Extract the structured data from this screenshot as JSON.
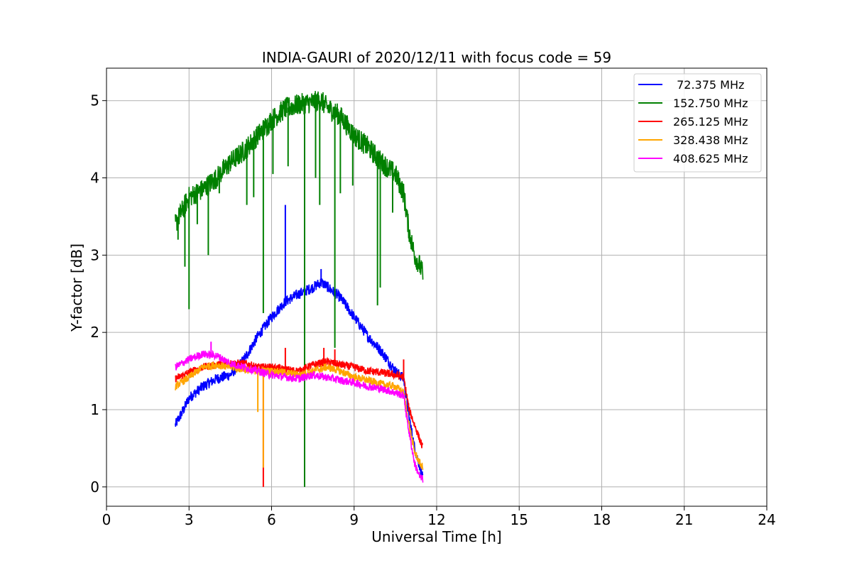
{
  "chart_data": {
    "type": "line",
    "title": "INDIA-GAURI of 2020/12/11 with focus code = 59",
    "xlabel": "Universal Time [h]",
    "ylabel": "Y-factor [dB]",
    "xlim": [
      0,
      24
    ],
    "ylim": [
      -0.25,
      5.42
    ],
    "xticks": [
      0,
      3,
      6,
      9,
      12,
      15,
      18,
      21,
      24
    ],
    "yticks": [
      0,
      1,
      2,
      3,
      4,
      5
    ],
    "grid": true,
    "legend_position": "top-right",
    "series": [
      {
        "name": "72.375 MHz",
        "legend_label": " 72.375 MHz",
        "color": "#0000ff",
        "noise": 0.07,
        "x": [
          2.5,
          2.8,
          3.0,
          3.5,
          4.0,
          4.5,
          5.0,
          5.5,
          6.0,
          6.5,
          7.0,
          7.5,
          7.8,
          8.0,
          8.5,
          9.0,
          9.5,
          10.0,
          10.5,
          10.8,
          11.0,
          11.2,
          11.4,
          11.5
        ],
        "values": [
          0.8,
          1.0,
          1.15,
          1.3,
          1.4,
          1.45,
          1.65,
          1.95,
          2.2,
          2.4,
          2.5,
          2.58,
          2.65,
          2.6,
          2.45,
          2.2,
          1.95,
          1.75,
          1.5,
          1.4,
          0.9,
          0.5,
          0.25,
          0.1
        ],
        "spikes": [
          {
            "x": 6.5,
            "y": 3.65
          },
          {
            "x": 7.8,
            "y": 2.82
          }
        ]
      },
      {
        "name": "152.750 MHz",
        "legend_label": "152.750 MHz",
        "color": "#008000",
        "noise": 0.14,
        "x": [
          2.5,
          3.0,
          3.5,
          4.0,
          4.5,
          5.0,
          5.5,
          6.0,
          6.5,
          7.0,
          7.5,
          7.8,
          8.0,
          8.5,
          9.0,
          9.5,
          10.0,
          10.5,
          10.8,
          11.0,
          11.2,
          11.4,
          11.5
        ],
        "values": [
          3.4,
          3.75,
          3.85,
          4.0,
          4.2,
          4.35,
          4.55,
          4.75,
          4.9,
          4.95,
          4.98,
          5.0,
          4.92,
          4.8,
          4.55,
          4.4,
          4.2,
          4.05,
          3.8,
          3.3,
          3.0,
          2.85,
          2.75
        ],
        "spikes": [
          {
            "x": 2.6,
            "y": 3.2
          },
          {
            "x": 2.85,
            "y": 2.85
          },
          {
            "x": 3.0,
            "y": 2.3
          },
          {
            "x": 3.3,
            "y": 3.4
          },
          {
            "x": 3.7,
            "y": 3.0
          },
          {
            "x": 4.1,
            "y": 3.8
          },
          {
            "x": 5.1,
            "y": 3.65
          },
          {
            "x": 5.35,
            "y": 3.75
          },
          {
            "x": 5.7,
            "y": 2.25
          },
          {
            "x": 6.05,
            "y": 4.05
          },
          {
            "x": 6.6,
            "y": 4.15
          },
          {
            "x": 7.2,
            "y": 0.0
          },
          {
            "x": 7.6,
            "y": 4.0
          },
          {
            "x": 7.75,
            "y": 3.65
          },
          {
            "x": 8.3,
            "y": 1.8
          },
          {
            "x": 8.5,
            "y": 3.8
          },
          {
            "x": 8.95,
            "y": 3.9
          },
          {
            "x": 9.85,
            "y": 2.35
          },
          {
            "x": 9.95,
            "y": 2.58
          },
          {
            "x": 10.4,
            "y": 3.55
          }
        ]
      },
      {
        "name": "265.125 MHz",
        "legend_label": "265.125 MHz",
        "color": "#ff0000",
        "noise": 0.05,
        "x": [
          2.5,
          3.0,
          3.5,
          4.0,
          4.5,
          5.0,
          5.5,
          6.0,
          6.5,
          7.0,
          7.5,
          8.0,
          8.5,
          9.0,
          9.5,
          10.0,
          10.5,
          10.8,
          11.0,
          11.2,
          11.4,
          11.5
        ],
        "values": [
          1.4,
          1.48,
          1.55,
          1.58,
          1.6,
          1.6,
          1.55,
          1.55,
          1.52,
          1.5,
          1.58,
          1.62,
          1.58,
          1.55,
          1.5,
          1.48,
          1.45,
          1.42,
          1.0,
          0.8,
          0.6,
          0.5
        ],
        "spikes": [
          {
            "x": 5.7,
            "y": 0.0
          },
          {
            "x": 6.5,
            "y": 1.8
          },
          {
            "x": 7.9,
            "y": 1.8
          },
          {
            "x": 8.3,
            "y": 1.78
          },
          {
            "x": 10.8,
            "y": 1.65
          }
        ]
      },
      {
        "name": "328.438 MHz",
        "legend_label": "328.438 MHz",
        "color": "#ffa500",
        "noise": 0.05,
        "x": [
          2.5,
          3.0,
          3.5,
          4.0,
          4.5,
          5.0,
          5.5,
          6.0,
          6.5,
          7.0,
          7.5,
          8.0,
          8.5,
          9.0,
          9.5,
          10.0,
          10.5,
          10.8,
          11.0,
          11.2,
          11.4,
          11.5
        ],
        "values": [
          1.3,
          1.42,
          1.55,
          1.58,
          1.55,
          1.52,
          1.5,
          1.5,
          1.48,
          1.45,
          1.5,
          1.55,
          1.5,
          1.42,
          1.38,
          1.33,
          1.3,
          1.22,
          0.8,
          0.45,
          0.3,
          0.25
        ],
        "spikes": [
          {
            "x": 5.5,
            "y": 0.97
          },
          {
            "x": 5.7,
            "y": 0.25
          }
        ]
      },
      {
        "name": "408.625 MHz",
        "legend_label": "408.625 MHz",
        "color": "#ff00ff",
        "noise": 0.05,
        "x": [
          2.5,
          3.0,
          3.5,
          4.0,
          4.5,
          5.0,
          5.5,
          6.0,
          6.5,
          7.0,
          7.5,
          8.0,
          8.5,
          9.0,
          9.5,
          10.0,
          10.5,
          10.8,
          11.0,
          11.2,
          11.4,
          11.5
        ],
        "values": [
          1.55,
          1.65,
          1.72,
          1.7,
          1.6,
          1.55,
          1.5,
          1.45,
          1.42,
          1.4,
          1.45,
          1.42,
          1.38,
          1.35,
          1.3,
          1.27,
          1.22,
          1.18,
          0.7,
          0.3,
          0.12,
          0.1
        ],
        "spikes": [
          {
            "x": 3.8,
            "y": 1.88
          }
        ]
      }
    ]
  }
}
